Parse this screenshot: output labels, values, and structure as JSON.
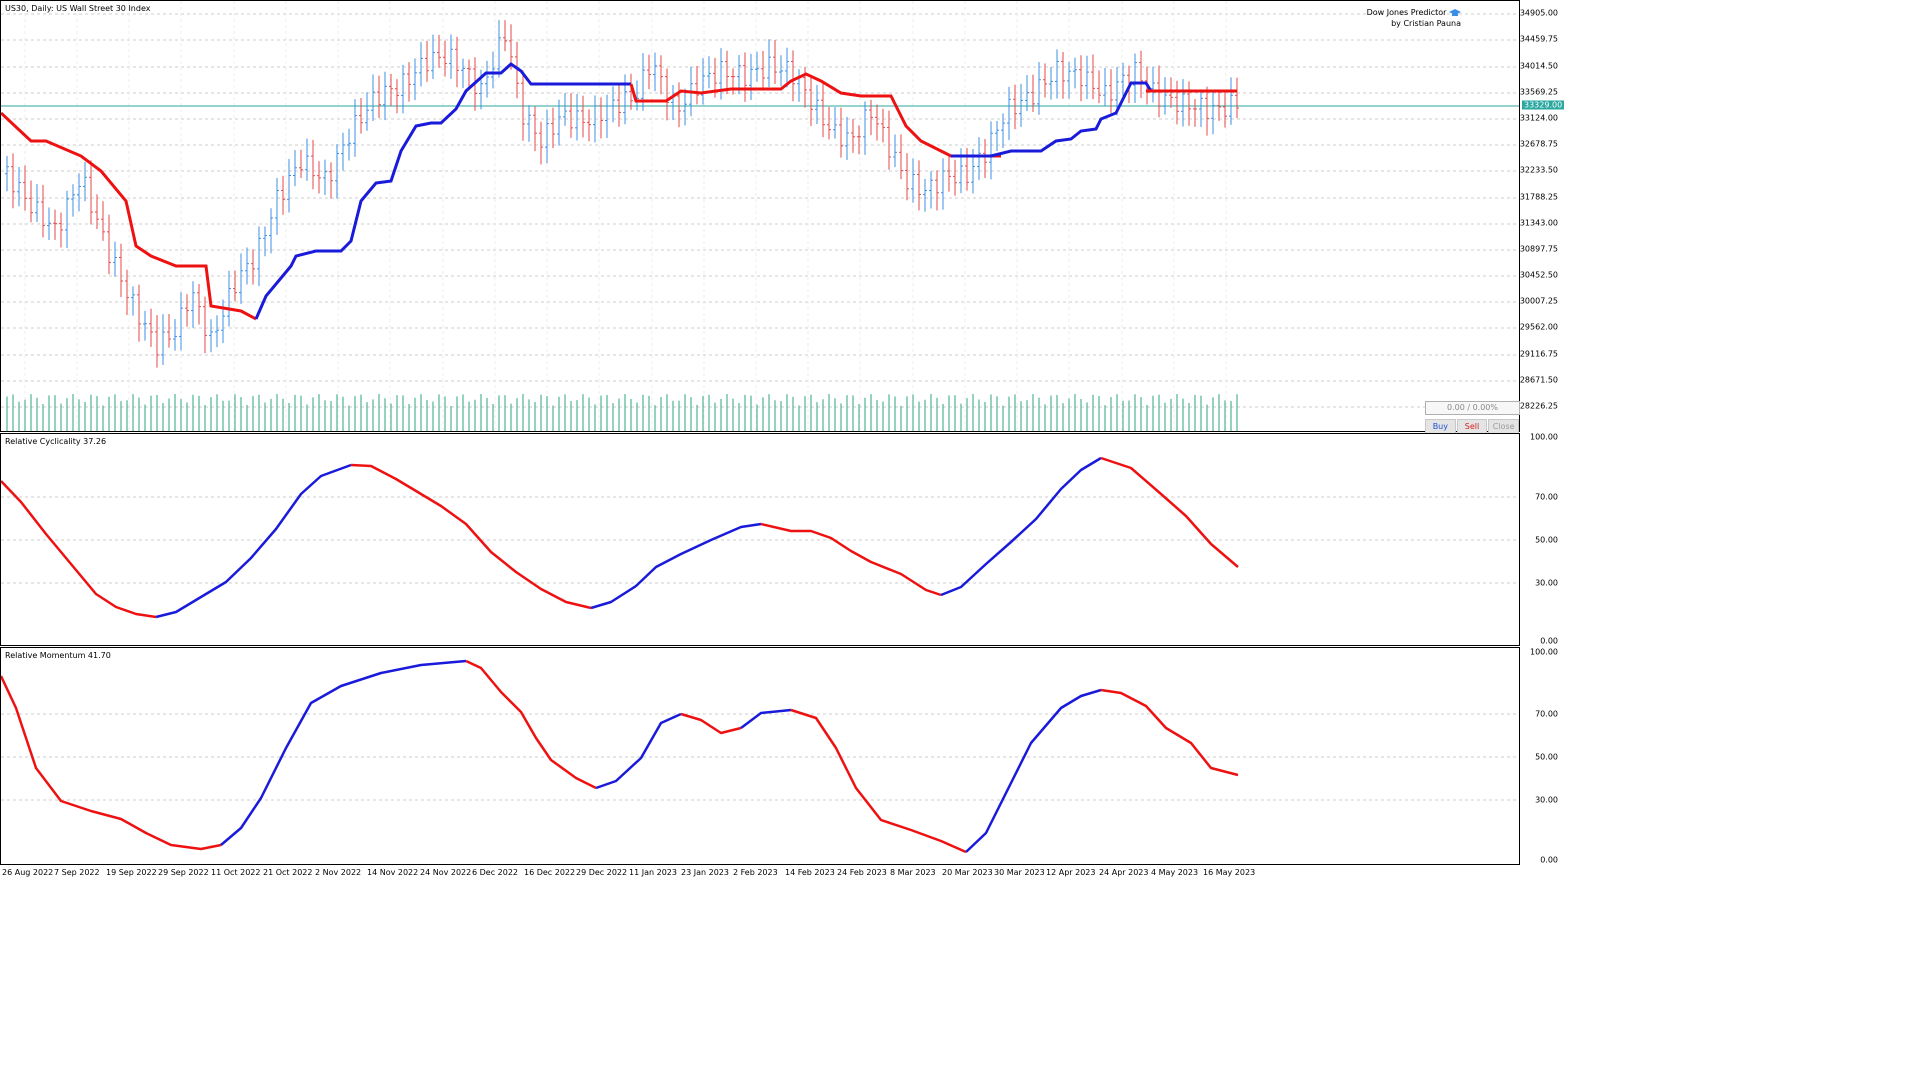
{
  "main_pane": {
    "title": "US30, Daily:  US Wall Street 30 Index",
    "brand_line1": "Dow Jones Predictor",
    "brand_line2": "by Cristian Pauna",
    "brand_icon": "graduation-cap-icon",
    "current_price": "33329.00",
    "y_labels": [
      "34905.00",
      "34459.75",
      "34014.50",
      "33569.25",
      "33124.00",
      "32678.75",
      "32233.50",
      "31788.25",
      "31343.00",
      "30897.75",
      "30452.50",
      "30007.25",
      "29562.00",
      "29116.75",
      "28671.50",
      "28226.25"
    ],
    "trade_panel": {
      "pnl": "0.00 / 0.00%",
      "buy": "Buy",
      "sell": "Sell",
      "close": "Close"
    }
  },
  "cyclicality_pane": {
    "title": "Relative Cyclicality 37.26",
    "y_labels": [
      "100.00",
      "70.00",
      "50.00",
      "30.00",
      "0.00"
    ]
  },
  "momentum_pane": {
    "title": "Relative Momentum 41.70",
    "y_labels": [
      "100.00",
      "70.00",
      "50.00",
      "30.00",
      "0.00"
    ]
  },
  "x_labels": [
    "26 Aug 2022",
    "7 Sep 2022",
    "19 Sep 2022",
    "29 Sep 2022",
    "11 Oct 2022",
    "21 Oct 2022",
    "2 Nov 2022",
    "14 Nov 2022",
    "24 Nov 2022",
    "6 Dec 2022",
    "16 Dec 2022",
    "29 Dec 2022",
    "11 Jan 2023",
    "23 Jan 2023",
    "2 Feb 2023",
    "14 Feb 2023",
    "24 Feb 2023",
    "8 Mar 2023",
    "20 Mar 2023",
    "30 Mar 2023",
    "12 Apr 2023",
    "24 Apr 2023",
    "4 May 2023",
    "16 May 2023"
  ],
  "colors": {
    "up": "#3d8fe6",
    "down": "#e64a4a",
    "line_up": "#1a1adb",
    "line_down": "#ee1111",
    "volume": "#2fa57a",
    "price_line": "#2aa7a0",
    "grid": "#cccccc"
  }
}
